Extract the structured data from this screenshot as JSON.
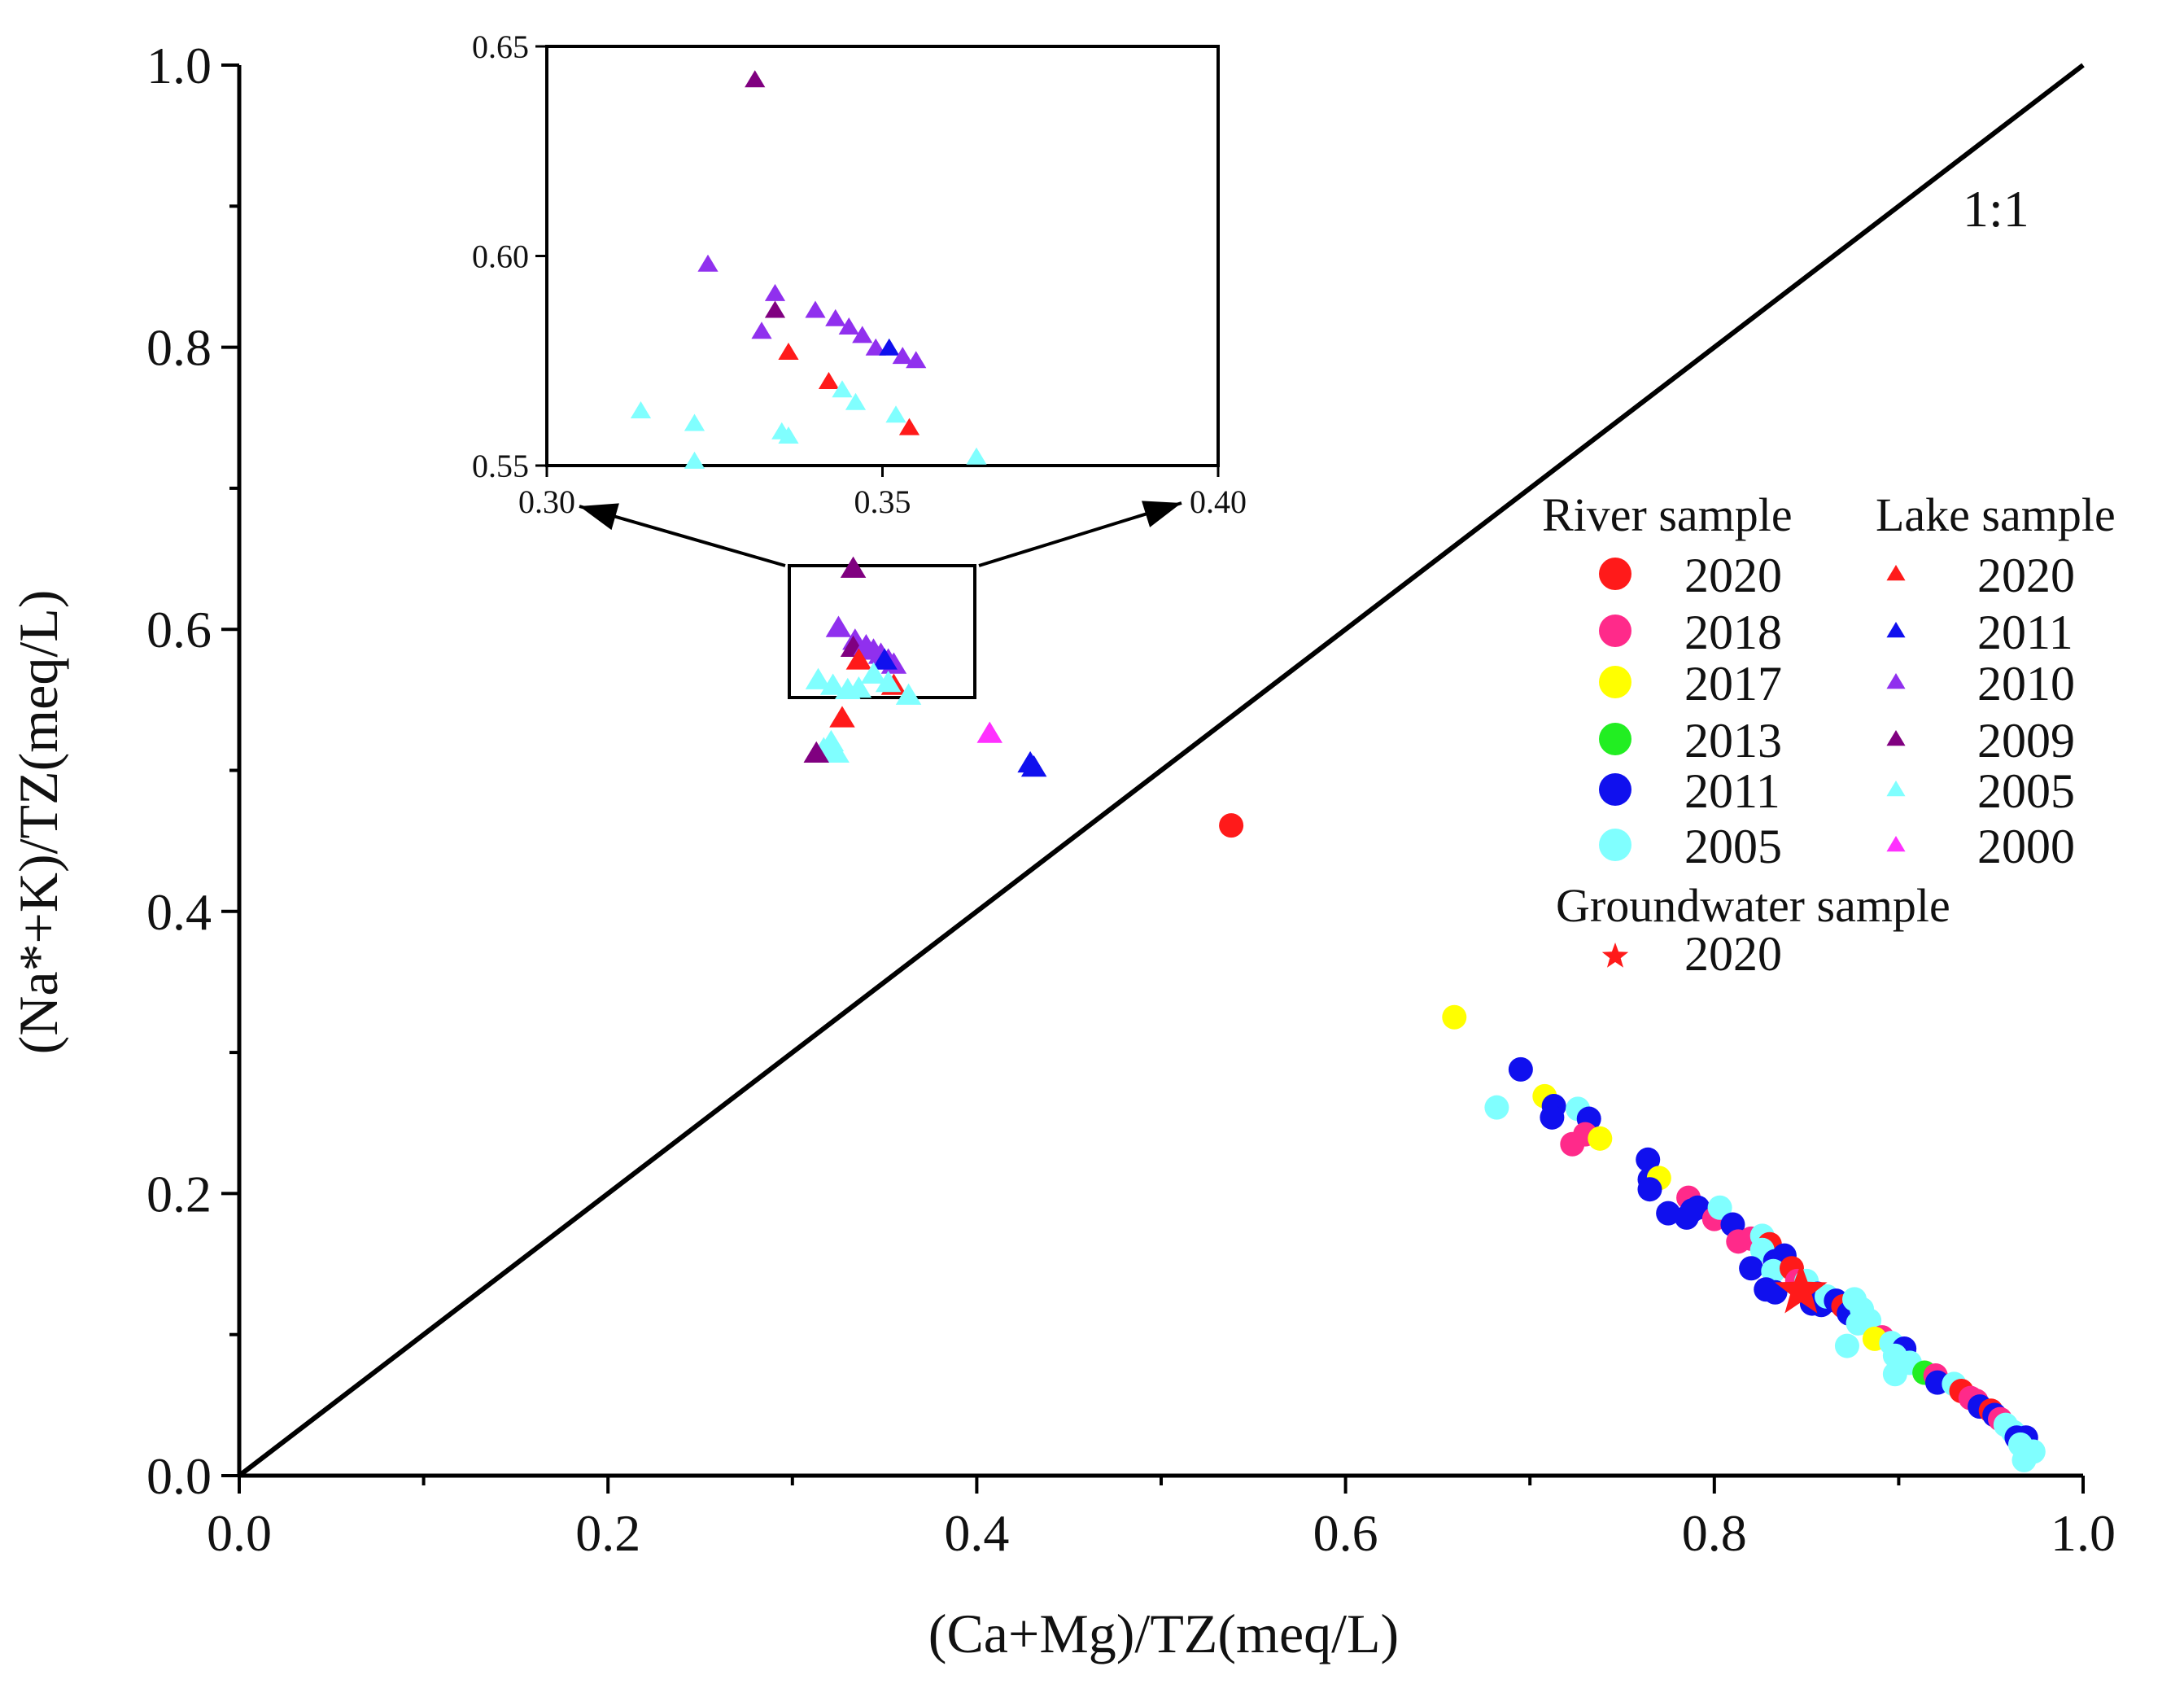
{
  "colors": {
    "red": "#ff1a1a",
    "pink": "#ff2a8a",
    "yellow": "#ffff00",
    "green": "#22ee22",
    "blue": "#1010ee",
    "cyan": "#80ffff",
    "lake_red": "#ff1a1a",
    "lake_blue": "#1010ee",
    "purple": "#9030ee",
    "darkpurple": "#800080",
    "lake_cyan": "#80ffff",
    "magenta": "#ff30ff",
    "line": "#000000"
  },
  "chart_data": {
    "type": "scatter",
    "title": "",
    "xlabel": "(Ca+Mg)/TZ(meq/L)",
    "ylabel": "(Na*+K)/TZ(meq/L)",
    "xlim": [
      0.0,
      1.0
    ],
    "ylim": [
      0.0,
      1.0
    ],
    "xticks": [
      "0.0",
      "0.2",
      "0.4",
      "0.6",
      "0.8",
      "1.0"
    ],
    "yticks": [
      "0.0",
      "0.2",
      "0.4",
      "0.6",
      "0.8",
      "1.0"
    ],
    "reference_line": {
      "label": "1:1",
      "from": [
        0,
        0
      ],
      "to": [
        1,
        1
      ]
    },
    "zoom_box": {
      "xlim": [
        0.3,
        0.4
      ],
      "ylim": [
        0.55,
        0.65
      ]
    },
    "inset": {
      "xlim": [
        0.3,
        0.4
      ],
      "ylim": [
        0.55,
        0.65
      ],
      "xticks": [
        "0.30",
        "0.35",
        "0.40"
      ],
      "yticks": [
        "0.55",
        "0.60",
        "0.65"
      ],
      "points": [
        {
          "x": 0.331,
          "y": 0.642,
          "c": "darkpurple"
        },
        {
          "x": 0.324,
          "y": 0.598,
          "c": "purple"
        },
        {
          "x": 0.334,
          "y": 0.591,
          "c": "purple"
        },
        {
          "x": 0.334,
          "y": 0.587,
          "c": "darkpurple"
        },
        {
          "x": 0.332,
          "y": 0.582,
          "c": "purple"
        },
        {
          "x": 0.34,
          "y": 0.587,
          "c": "purple"
        },
        {
          "x": 0.343,
          "y": 0.585,
          "c": "purple"
        },
        {
          "x": 0.345,
          "y": 0.583,
          "c": "purple"
        },
        {
          "x": 0.347,
          "y": 0.581,
          "c": "purple"
        },
        {
          "x": 0.349,
          "y": 0.578,
          "c": "purple"
        },
        {
          "x": 0.351,
          "y": 0.578,
          "c": "blue"
        },
        {
          "x": 0.353,
          "y": 0.576,
          "c": "purple"
        },
        {
          "x": 0.355,
          "y": 0.575,
          "c": "purple"
        },
        {
          "x": 0.336,
          "y": 0.577,
          "c": "red"
        },
        {
          "x": 0.342,
          "y": 0.57,
          "c": "red"
        },
        {
          "x": 0.354,
          "y": 0.559,
          "c": "red"
        },
        {
          "x": 0.344,
          "y": 0.568,
          "c": "cyan"
        },
        {
          "x": 0.346,
          "y": 0.565,
          "c": "cyan"
        },
        {
          "x": 0.352,
          "y": 0.562,
          "c": "cyan"
        },
        {
          "x": 0.314,
          "y": 0.563,
          "c": "cyan"
        },
        {
          "x": 0.322,
          "y": 0.56,
          "c": "cyan"
        },
        {
          "x": 0.335,
          "y": 0.558,
          "c": "cyan"
        },
        {
          "x": 0.336,
          "y": 0.557,
          "c": "cyan"
        },
        {
          "x": 0.322,
          "y": 0.551,
          "c": "cyan"
        },
        {
          "x": 0.364,
          "y": 0.552,
          "c": "cyan"
        }
      ]
    },
    "legend": {
      "river_title": "River sample",
      "lake_title": "Lake sample",
      "groundwater_title": "Groundwater sample",
      "river": [
        {
          "label": "2020",
          "c": "red"
        },
        {
          "label": "2018",
          "c": "pink"
        },
        {
          "label": "2017",
          "c": "yellow"
        },
        {
          "label": "2013",
          "c": "green"
        },
        {
          "label": "2011",
          "c": "blue"
        },
        {
          "label": "2005",
          "c": "cyan"
        }
      ],
      "lake": [
        {
          "label": "2020",
          "c": "lake_red"
        },
        {
          "label": "2011",
          "c": "lake_blue"
        },
        {
          "label": "2010",
          "c": "purple"
        },
        {
          "label": "2009",
          "c": "darkpurple"
        },
        {
          "label": "2005",
          "c": "lake_cyan"
        },
        {
          "label": "2000",
          "c": "magenta"
        }
      ],
      "groundwater": [
        {
          "label": "2020",
          "c": "red"
        }
      ]
    },
    "series": [
      {
        "name": "Lake samples",
        "marker": "triangle",
        "points": [
          {
            "x": 0.333,
            "y": 0.643,
            "c": "darkpurple"
          },
          {
            "x": 0.325,
            "y": 0.601,
            "c": "purple"
          },
          {
            "x": 0.334,
            "y": 0.592,
            "c": "purple"
          },
          {
            "x": 0.333,
            "y": 0.587,
            "c": "darkpurple"
          },
          {
            "x": 0.34,
            "y": 0.588,
            "c": "purple"
          },
          {
            "x": 0.344,
            "y": 0.585,
            "c": "purple"
          },
          {
            "x": 0.348,
            "y": 0.582,
            "c": "purple"
          },
          {
            "x": 0.352,
            "y": 0.578,
            "c": "purple"
          },
          {
            "x": 0.355,
            "y": 0.575,
            "c": "purple"
          },
          {
            "x": 0.336,
            "y": 0.578,
            "c": "red"
          },
          {
            "x": 0.355,
            "y": 0.56,
            "c": "red"
          },
          {
            "x": 0.35,
            "y": 0.578,
            "c": "blue"
          },
          {
            "x": 0.344,
            "y": 0.568,
            "c": "cyan"
          },
          {
            "x": 0.314,
            "y": 0.564,
            "c": "cyan"
          },
          {
            "x": 0.322,
            "y": 0.56,
            "c": "cyan"
          },
          {
            "x": 0.336,
            "y": 0.558,
            "c": "cyan"
          },
          {
            "x": 0.352,
            "y": 0.562,
            "c": "cyan"
          },
          {
            "x": 0.363,
            "y": 0.553,
            "c": "cyan"
          },
          {
            "x": 0.33,
            "y": 0.557,
            "c": "cyan"
          },
          {
            "x": 0.327,
            "y": 0.537,
            "c": "red"
          },
          {
            "x": 0.321,
            "y": 0.52,
            "c": "cyan"
          },
          {
            "x": 0.317,
            "y": 0.515,
            "c": "cyan"
          },
          {
            "x": 0.324,
            "y": 0.512,
            "c": "cyan"
          },
          {
            "x": 0.313,
            "y": 0.512,
            "c": "darkpurple"
          },
          {
            "x": 0.407,
            "y": 0.526,
            "c": "magenta"
          },
          {
            "x": 0.429,
            "y": 0.505,
            "c": "blue"
          },
          {
            "x": 0.431,
            "y": 0.502,
            "c": "blue"
          }
        ]
      },
      {
        "name": "River samples",
        "marker": "circle",
        "points": [
          {
            "x": 0.538,
            "y": 0.461,
            "c": "red"
          },
          {
            "x": 0.659,
            "y": 0.325,
            "c": "yellow"
          },
          {
            "x": 0.695,
            "y": 0.288,
            "c": "blue"
          },
          {
            "x": 0.682,
            "y": 0.261,
            "c": "cyan"
          },
          {
            "x": 0.708,
            "y": 0.269,
            "c": "yellow"
          },
          {
            "x": 0.713,
            "y": 0.262,
            "c": "blue"
          },
          {
            "x": 0.712,
            "y": 0.254,
            "c": "blue"
          },
          {
            "x": 0.726,
            "y": 0.26,
            "c": "cyan"
          },
          {
            "x": 0.732,
            "y": 0.253,
            "c": "blue"
          },
          {
            "x": 0.723,
            "y": 0.235,
            "c": "pink"
          },
          {
            "x": 0.73,
            "y": 0.242,
            "c": "pink"
          },
          {
            "x": 0.738,
            "y": 0.239,
            "c": "yellow"
          },
          {
            "x": 0.764,
            "y": 0.224,
            "c": "blue"
          },
          {
            "x": 0.765,
            "y": 0.21,
            "c": "blue"
          },
          {
            "x": 0.77,
            "y": 0.211,
            "c": "yellow"
          },
          {
            "x": 0.765,
            "y": 0.203,
            "c": "blue"
          },
          {
            "x": 0.775,
            "y": 0.186,
            "c": "blue"
          },
          {
            "x": 0.786,
            "y": 0.197,
            "c": "pink"
          },
          {
            "x": 0.788,
            "y": 0.188,
            "c": "blue"
          },
          {
            "x": 0.791,
            "y": 0.19,
            "c": "blue"
          },
          {
            "x": 0.785,
            "y": 0.183,
            "c": "blue"
          },
          {
            "x": 0.8,
            "y": 0.182,
            "c": "pink"
          },
          {
            "x": 0.803,
            "y": 0.19,
            "c": "cyan"
          },
          {
            "x": 0.81,
            "y": 0.178,
            "c": "blue"
          },
          {
            "x": 0.813,
            "y": 0.166,
            "c": "pink"
          },
          {
            "x": 0.82,
            "y": 0.168,
            "c": "pink"
          },
          {
            "x": 0.826,
            "y": 0.17,
            "c": "cyan"
          },
          {
            "x": 0.83,
            "y": 0.164,
            "c": "red"
          },
          {
            "x": 0.826,
            "y": 0.16,
            "c": "cyan"
          },
          {
            "x": 0.82,
            "y": 0.147,
            "c": "blue"
          },
          {
            "x": 0.833,
            "y": 0.152,
            "c": "blue"
          },
          {
            "x": 0.838,
            "y": 0.156,
            "c": "blue"
          },
          {
            "x": 0.832,
            "y": 0.145,
            "c": "cyan"
          },
          {
            "x": 0.842,
            "y": 0.147,
            "c": "red"
          },
          {
            "x": 0.828,
            "y": 0.132,
            "c": "blue"
          },
          {
            "x": 0.833,
            "y": 0.13,
            "c": "blue"
          },
          {
            "x": 0.845,
            "y": 0.138,
            "c": "pink"
          },
          {
            "x": 0.85,
            "y": 0.138,
            "c": "cyan"
          },
          {
            "x": 0.856,
            "y": 0.129,
            "c": "blue"
          },
          {
            "x": 0.853,
            "y": 0.122,
            "c": "blue"
          },
          {
            "x": 0.858,
            "y": 0.121,
            "c": "blue"
          },
          {
            "x": 0.861,
            "y": 0.127,
            "c": "cyan"
          },
          {
            "x": 0.866,
            "y": 0.124,
            "c": "blue"
          },
          {
            "x": 0.87,
            "y": 0.12,
            "c": "red"
          },
          {
            "x": 0.873,
            "y": 0.115,
            "c": "blue"
          },
          {
            "x": 0.876,
            "y": 0.125,
            "c": "cyan"
          },
          {
            "x": 0.88,
            "y": 0.118,
            "c": "cyan"
          },
          {
            "x": 0.884,
            "y": 0.11,
            "c": "cyan"
          },
          {
            "x": 0.878,
            "y": 0.108,
            "c": "cyan"
          },
          {
            "x": 0.891,
            "y": 0.098,
            "c": "pink"
          },
          {
            "x": 0.887,
            "y": 0.097,
            "c": "yellow"
          },
          {
            "x": 0.872,
            "y": 0.092,
            "c": "cyan"
          },
          {
            "x": 0.896,
            "y": 0.094,
            "c": "cyan"
          },
          {
            "x": 0.903,
            "y": 0.09,
            "c": "blue"
          },
          {
            "x": 0.898,
            "y": 0.085,
            "c": "cyan"
          },
          {
            "x": 0.906,
            "y": 0.08,
            "c": "cyan"
          },
          {
            "x": 0.914,
            "y": 0.073,
            "c": "green"
          },
          {
            "x": 0.92,
            "y": 0.071,
            "c": "pink"
          },
          {
            "x": 0.898,
            "y": 0.072,
            "c": "cyan"
          },
          {
            "x": 0.921,
            "y": 0.066,
            "c": "blue"
          },
          {
            "x": 0.93,
            "y": 0.065,
            "c": "cyan"
          },
          {
            "x": 0.934,
            "y": 0.06,
            "c": "red"
          },
          {
            "x": 0.939,
            "y": 0.055,
            "c": "pink"
          },
          {
            "x": 0.942,
            "y": 0.053,
            "c": "pink"
          },
          {
            "x": 0.944,
            "y": 0.049,
            "c": "blue"
          },
          {
            "x": 0.95,
            "y": 0.046,
            "c": "red"
          },
          {
            "x": 0.952,
            "y": 0.043,
            "c": "blue"
          },
          {
            "x": 0.955,
            "y": 0.04,
            "c": "pink"
          },
          {
            "x": 0.958,
            "y": 0.036,
            "c": "cyan"
          },
          {
            "x": 0.962,
            "y": 0.031,
            "c": "cyan"
          },
          {
            "x": 0.964,
            "y": 0.027,
            "c": "blue"
          },
          {
            "x": 0.969,
            "y": 0.027,
            "c": "blue"
          },
          {
            "x": 0.966,
            "y": 0.022,
            "c": "cyan"
          },
          {
            "x": 0.973,
            "y": 0.017,
            "c": "cyan"
          },
          {
            "x": 0.968,
            "y": 0.011,
            "c": "cyan"
          }
        ]
      },
      {
        "name": "Groundwater sample 2020",
        "marker": "star",
        "points": [
          {
            "x": 0.847,
            "y": 0.131,
            "c": "red"
          }
        ]
      }
    ]
  }
}
